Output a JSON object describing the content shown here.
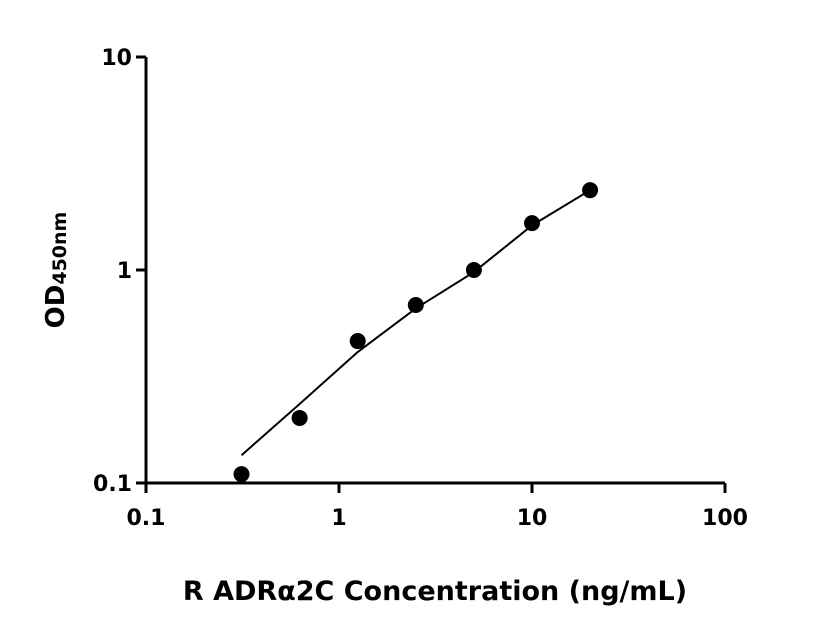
{
  "chart_data": {
    "type": "scatter",
    "xlabel": "R ADRα2C Concentration (ng/mL)",
    "ylabel": "OD",
    "ylabel_subscript": "450nm",
    "xscale": "log",
    "yscale": "log",
    "xlim": [
      0.1,
      100
    ],
    "ylim": [
      0.1,
      10
    ],
    "xticks": [
      0.1,
      1,
      10,
      100
    ],
    "yticks": [
      0.1,
      1,
      10
    ],
    "x": [
      0.3125,
      0.625,
      1.25,
      2.5,
      5,
      10,
      20
    ],
    "series": [
      {
        "color": "#000000",
        "values": [
          0.11,
          0.202,
          0.464,
          0.685,
          1.0,
          1.66,
          2.37
        ]
      }
    ],
    "fit": {
      "color": "#000000",
      "x": [
        0.3125,
        0.625,
        1.25,
        2.5,
        5,
        10,
        20
      ],
      "values": [
        0.135,
        0.235,
        0.412,
        0.66,
        0.978,
        1.62,
        2.37
      ]
    }
  }
}
